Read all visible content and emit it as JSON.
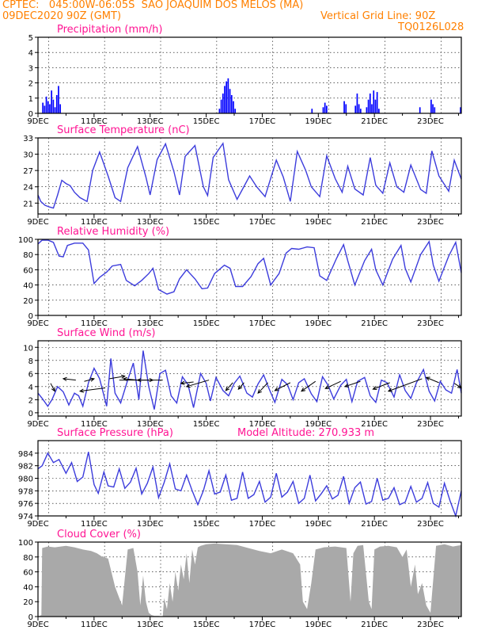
{
  "header": {
    "station": "CPTEC:   045:00W-06:05S  SAO JOAQUIM DOS MELOS (MA)",
    "run": "09DEC2020 90Z (GMT)",
    "grid_note": "Vertical Grid Line: 90Z",
    "code": "TQ0126L028"
  },
  "colors": {
    "title": "#ff1493",
    "header": "#ff8000",
    "precip": "#0000ff",
    "line": "#3c3cdc",
    "cloud": "#a9a9a9",
    "arrow": "#000000",
    "grid": "#000000"
  },
  "x_axis": {
    "ticks": [
      "9DEC",
      "11DEC",
      "13DEC",
      "15DEC",
      "17DEC",
      "19DEC",
      "21DEC",
      "23DEC"
    ],
    "range_days": [
      9,
      24.1
    ]
  },
  "chart_data": [
    {
      "type": "bar",
      "title": "Precipitation (mm/h)",
      "ylim": [
        0,
        5
      ],
      "yticks": [
        "0",
        "1",
        "2",
        "3",
        "4",
        "5"
      ],
      "events": [
        {
          "day": 9.15,
          "values": [
            0.7,
            0.5,
            1.1,
            0.8,
            0.6,
            1.5,
            0.9,
            0.4,
            1.2,
            1.8,
            0.6
          ]
        },
        {
          "day": 15.45,
          "values": [
            0.3,
            0.9,
            1.3,
            1.8,
            2.1,
            2.3,
            1.6,
            1.2,
            0.8,
            0.3
          ]
        },
        {
          "day": 18.75,
          "values": [
            0.3
          ]
        },
        {
          "day": 19.15,
          "values": [
            0.4,
            0.7,
            0.5
          ]
        },
        {
          "day": 19.9,
          "values": [
            0.8,
            0.6
          ]
        },
        {
          "day": 20.3,
          "values": [
            0.5,
            1.3,
            0.6,
            0.3
          ]
        },
        {
          "day": 20.7,
          "values": [
            0.4,
            0.9,
            1.3,
            0.6
          ]
        },
        {
          "day": 20.95,
          "values": [
            1.5,
            0.9,
            1.4,
            0.3
          ]
        },
        {
          "day": 22.6,
          "values": [
            0.4
          ]
        },
        {
          "day": 23.0,
          "values": [
            0.9,
            0.6,
            0.4
          ]
        },
        {
          "day": 24.05,
          "values": [
            0.4
          ]
        }
      ]
    },
    {
      "type": "line",
      "title": "Surface Temperature (nC)",
      "ylim": [
        19,
        33
      ],
      "yticks": [
        "21",
        "24",
        "27",
        "30",
        "33"
      ],
      "series": [
        {
          "x": [
            9.0,
            9.1,
            9.25,
            9.4,
            9.55,
            9.7,
            9.85,
            10.0,
            10.15,
            10.3,
            10.5,
            10.75,
            10.95,
            11.2,
            11.5,
            11.75,
            11.95,
            12.2,
            12.55,
            12.85,
            13.0,
            13.25,
            13.55,
            13.85,
            14.05,
            14.25,
            14.6,
            14.9,
            15.05,
            15.25,
            15.6,
            15.8,
            16.1,
            16.55,
            16.8,
            17.1,
            17.5,
            17.75,
            18.0,
            18.25,
            18.55,
            18.75,
            19.05,
            19.3,
            19.6,
            19.85,
            20.05,
            20.3,
            20.6,
            20.85,
            21.05,
            21.3,
            21.55,
            21.8,
            22.05,
            22.3,
            22.65,
            22.85,
            23.05,
            23.3,
            23.65,
            23.85,
            24.1
          ],
          "y": [
            22.5,
            21.3,
            20.6,
            20.3,
            20.1,
            22.5,
            25.2,
            24.6,
            24.2,
            23.0,
            22.0,
            21.3,
            27.0,
            30.4,
            26.0,
            22.0,
            21.3,
            27.5,
            31.4,
            25.8,
            22.5,
            29.0,
            31.9,
            26.8,
            22.5,
            29.6,
            31.6,
            24.0,
            22.4,
            29.4,
            32.0,
            25.3,
            21.7,
            26.0,
            24.0,
            22.2,
            28.9,
            25.8,
            21.3,
            30.5,
            27.0,
            24.0,
            22.2,
            29.7,
            25.5,
            23.0,
            27.8,
            23.6,
            22.5,
            29.4,
            24.3,
            22.8,
            28.4,
            24.0,
            23.0,
            28.0,
            23.5,
            22.8,
            30.6,
            26.0,
            23.2,
            28.9,
            25.4
          ]
        }
      ]
    },
    {
      "type": "line",
      "title": "Relative Humidity (%)",
      "ylim": [
        0,
        100
      ],
      "yticks": [
        "0",
        "20",
        "40",
        "60",
        "80",
        "100"
      ],
      "series": [
        {
          "x": [
            9.0,
            9.15,
            9.35,
            9.55,
            9.75,
            9.9,
            10.05,
            10.3,
            10.6,
            10.8,
            11.0,
            11.2,
            11.45,
            11.65,
            11.95,
            12.15,
            12.45,
            12.7,
            12.95,
            13.1,
            13.3,
            13.6,
            13.85,
            14.05,
            14.3,
            14.6,
            14.85,
            15.05,
            15.3,
            15.65,
            15.85,
            16.05,
            16.3,
            16.6,
            16.85,
            17.05,
            17.3,
            17.6,
            17.85,
            18.05,
            18.3,
            18.6,
            18.85,
            19.05,
            19.3,
            19.65,
            19.9,
            20.05,
            20.3,
            20.65,
            20.9,
            21.05,
            21.3,
            21.65,
            21.95,
            22.1,
            22.3,
            22.65,
            22.95,
            23.1,
            23.3,
            23.65,
            23.9,
            24.1
          ],
          "y": [
            94,
            99,
            99,
            96,
            78,
            77,
            92,
            95,
            95,
            86,
            42,
            50,
            57,
            65,
            67,
            46,
            39,
            46,
            55,
            62,
            34,
            28,
            31,
            48,
            60,
            48,
            35,
            36,
            55,
            66,
            62,
            38,
            38,
            51,
            68,
            75,
            40,
            55,
            82,
            88,
            87,
            90,
            89,
            52,
            46,
            75,
            93,
            72,
            40,
            72,
            87,
            60,
            40,
            74,
            92,
            62,
            44,
            80,
            97,
            66,
            45,
            78,
            96,
            56
          ]
        }
      ]
    },
    {
      "type": "line",
      "title": "Surface Wind (m/s)",
      "ylim": [
        -0.5,
        11
      ],
      "yticks": [
        "0",
        "2",
        "4",
        "6",
        "8",
        "10"
      ],
      "series": [
        {
          "x": [
            9.0,
            9.15,
            9.35,
            9.5,
            9.7,
            9.9,
            10.1,
            10.3,
            10.45,
            10.6,
            10.8,
            11.0,
            11.2,
            11.45,
            11.6,
            11.75,
            11.95,
            12.2,
            12.4,
            12.6,
            12.75,
            12.95,
            13.15,
            13.35,
            13.55,
            13.75,
            13.95,
            14.15,
            14.35,
            14.55,
            14.8,
            15.0,
            15.15,
            15.35,
            15.6,
            15.8,
            16.0,
            16.2,
            16.45,
            16.65,
            16.85,
            17.05,
            17.25,
            17.45,
            17.7,
            17.9,
            18.1,
            18.3,
            18.5,
            18.75,
            18.95,
            19.15,
            19.35,
            19.55,
            19.8,
            20.0,
            20.2,
            20.4,
            20.65,
            20.85,
            21.05,
            21.25,
            21.45,
            21.7,
            21.9,
            22.1,
            22.3,
            22.5,
            22.75,
            22.95,
            23.15,
            23.35,
            23.55,
            23.75,
            23.95,
            24.1
          ],
          "y": [
            3.0,
            2.2,
            1.0,
            2.0,
            4.0,
            3.2,
            1.2,
            3.0,
            2.6,
            1.0,
            4.6,
            6.8,
            5.2,
            1.0,
            8.3,
            3.0,
            1.5,
            5.0,
            7.6,
            2.0,
            9.5,
            4.0,
            0.5,
            6.0,
            6.5,
            2.6,
            1.5,
            5.5,
            4.3,
            0.8,
            6.0,
            4.5,
            1.8,
            5.4,
            3.4,
            2.6,
            4.5,
            5.6,
            3.0,
            2.4,
            4.4,
            5.8,
            3.6,
            1.6,
            5.1,
            4.3,
            2.0,
            4.6,
            5.2,
            2.9,
            1.7,
            5.5,
            4.2,
            2.1,
            4.2,
            5.1,
            1.7,
            4.8,
            5.4,
            2.6,
            1.6,
            5.0,
            4.6,
            2.4,
            5.8,
            3.4,
            2.2,
            4.6,
            6.6,
            3.3,
            1.8,
            4.8,
            3.5,
            3.0,
            6.6,
            3.0
          ]
        }
      ],
      "arrows": [
        {
          "x": 9.45,
          "y": 4.5,
          "dx": 0.15,
          "dy": -1.2
        },
        {
          "x": 10.35,
          "y": 5.0,
          "dx": -0.45,
          "dy": 0.2
        },
        {
          "x": 10.65,
          "y": 4.8,
          "dx": 0.35,
          "dy": 0.4
        },
        {
          "x": 11.4,
          "y": 3.8,
          "dx": -0.9,
          "dy": -0.5
        },
        {
          "x": 11.55,
          "y": 5.2,
          "dx": 0.55,
          "dy": 0.4
        },
        {
          "x": 11.9,
          "y": 5.0,
          "dx": 1.2,
          "dy": 0.0
        },
        {
          "x": 12.55,
          "y": 5.0,
          "dx": -0.5,
          "dy": 0.2
        },
        {
          "x": 13.45,
          "y": 5.0,
          "dx": -0.9,
          "dy": 0.0
        },
        {
          "x": 14.55,
          "y": 4.7,
          "dx": -0.45,
          "dy": -0.2
        },
        {
          "x": 15.1,
          "y": 5.0,
          "dx": -0.8,
          "dy": -1.0
        },
        {
          "x": 15.95,
          "y": 4.6,
          "dx": -0.25,
          "dy": -1.2
        },
        {
          "x": 16.35,
          "y": 4.6,
          "dx": -0.2,
          "dy": -1.0
        },
        {
          "x": 17.2,
          "y": 4.6,
          "dx": -0.35,
          "dy": -1.6
        },
        {
          "x": 18.0,
          "y": 4.6,
          "dx": -0.55,
          "dy": -1.2
        },
        {
          "x": 18.9,
          "y": 4.8,
          "dx": -0.5,
          "dy": -1.5
        },
        {
          "x": 19.8,
          "y": 4.8,
          "dx": -0.55,
          "dy": -1.1
        },
        {
          "x": 20.5,
          "y": 4.8,
          "dx": -0.55,
          "dy": -0.8
        },
        {
          "x": 21.55,
          "y": 4.6,
          "dx": -0.6,
          "dy": -1.0
        },
        {
          "x": 22.7,
          "y": 5.2,
          "dx": -1.2,
          "dy": -1.9
        },
        {
          "x": 23.3,
          "y": 4.6,
          "dx": -0.45,
          "dy": 0.8
        },
        {
          "x": 23.85,
          "y": 4.5,
          "dx": 0.25,
          "dy": -0.7
        }
      ]
    },
    {
      "type": "line",
      "title": "Surface Pressure (hPa)",
      "annotation": "Model Altitude: 270.933 m",
      "ylim": [
        974,
        986
      ],
      "yticks": [
        "974",
        "976",
        "978",
        "980",
        "982",
        "984"
      ],
      "series": [
        {
          "x": [
            9.0,
            9.15,
            9.35,
            9.55,
            9.75,
            10.0,
            10.2,
            10.4,
            10.6,
            10.8,
            11.0,
            11.15,
            11.35,
            11.5,
            11.7,
            11.9,
            12.1,
            12.3,
            12.5,
            12.7,
            12.9,
            13.1,
            13.3,
            13.5,
            13.7,
            13.9,
            14.1,
            14.3,
            14.5,
            14.7,
            14.9,
            15.1,
            15.3,
            15.5,
            15.7,
            15.9,
            16.1,
            16.3,
            16.5,
            16.7,
            16.9,
            17.1,
            17.3,
            17.5,
            17.7,
            17.9,
            18.1,
            18.3,
            18.5,
            18.7,
            18.9,
            19.1,
            19.3,
            19.5,
            19.7,
            19.9,
            20.1,
            20.3,
            20.5,
            20.7,
            20.9,
            21.1,
            21.3,
            21.5,
            21.7,
            21.9,
            22.1,
            22.3,
            22.5,
            22.7,
            22.9,
            23.1,
            23.3,
            23.5,
            23.7,
            23.9,
            24.1
          ],
          "y": [
            981.5,
            982.0,
            984.0,
            982.5,
            983.0,
            980.8,
            982.5,
            979.5,
            980.2,
            984.2,
            979.0,
            977.6,
            981.0,
            978.8,
            978.6,
            981.5,
            978.4,
            979.4,
            981.6,
            977.5,
            979.2,
            981.8,
            976.9,
            979.3,
            982.3,
            978.3,
            978.0,
            980.5,
            978.0,
            975.8,
            978.0,
            981.2,
            977.5,
            977.8,
            980.5,
            976.5,
            976.8,
            981.0,
            976.8,
            977.4,
            979.5,
            976.2,
            977.0,
            980.8,
            977.0,
            977.8,
            979.5,
            976.0,
            976.8,
            980.5,
            976.4,
            977.5,
            978.8,
            976.7,
            977.3,
            980.3,
            976.0,
            978.5,
            979.4,
            975.9,
            976.3,
            980.0,
            976.5,
            976.8,
            978.5,
            975.8,
            976.2,
            978.7,
            976.2,
            976.8,
            979.3,
            976.0,
            975.4,
            979.2,
            976.4,
            974.0,
            978.0
          ]
        }
      ]
    },
    {
      "type": "area",
      "title": "Cloud Cover (%)",
      "ylim": [
        0,
        100
      ],
      "yticks": [
        "0",
        "20",
        "40",
        "60",
        "80",
        "100"
      ],
      "series": [
        {
          "x": [
            9.0,
            9.12,
            9.15,
            9.35,
            9.6,
            10.0,
            10.3,
            10.6,
            10.9,
            11.1,
            11.3,
            11.5,
            11.75,
            11.9,
            12.0,
            12.2,
            12.4,
            12.55,
            12.65,
            12.75,
            12.85,
            12.95,
            13.05,
            13.15,
            13.3,
            13.45,
            13.5,
            13.6,
            13.7,
            13.8,
            13.9,
            14.0,
            14.1,
            14.2,
            14.3,
            14.4,
            14.5,
            14.6,
            14.7,
            14.8,
            15.0,
            15.3,
            15.7,
            16.1,
            16.5,
            16.9,
            17.3,
            17.7,
            18.1,
            18.35,
            18.45,
            18.6,
            18.75,
            18.9,
            19.2,
            19.6,
            20.0,
            20.15,
            20.25,
            20.4,
            20.6,
            20.8,
            20.9,
            21.0,
            21.2,
            21.5,
            21.8,
            22.0,
            22.15,
            22.3,
            22.45,
            22.55,
            22.7,
            22.85,
            23.0,
            23.2,
            23.5,
            23.8,
            24.1
          ],
          "y": [
            0,
            2,
            92,
            94,
            93,
            95,
            93,
            90,
            88,
            85,
            80,
            78,
            40,
            25,
            15,
            90,
            92,
            60,
            15,
            55,
            20,
            5,
            2,
            1,
            1,
            0,
            25,
            10,
            45,
            20,
            60,
            35,
            70,
            50,
            85,
            45,
            90,
            70,
            93,
            95,
            97,
            98,
            97,
            96,
            92,
            88,
            85,
            90,
            85,
            70,
            20,
            10,
            45,
            90,
            93,
            94,
            92,
            20,
            85,
            95,
            96,
            20,
            10,
            90,
            94,
            95,
            93,
            80,
            90,
            40,
            70,
            30,
            45,
            15,
            5,
            95,
            97,
            94,
            96
          ]
        }
      ]
    }
  ]
}
